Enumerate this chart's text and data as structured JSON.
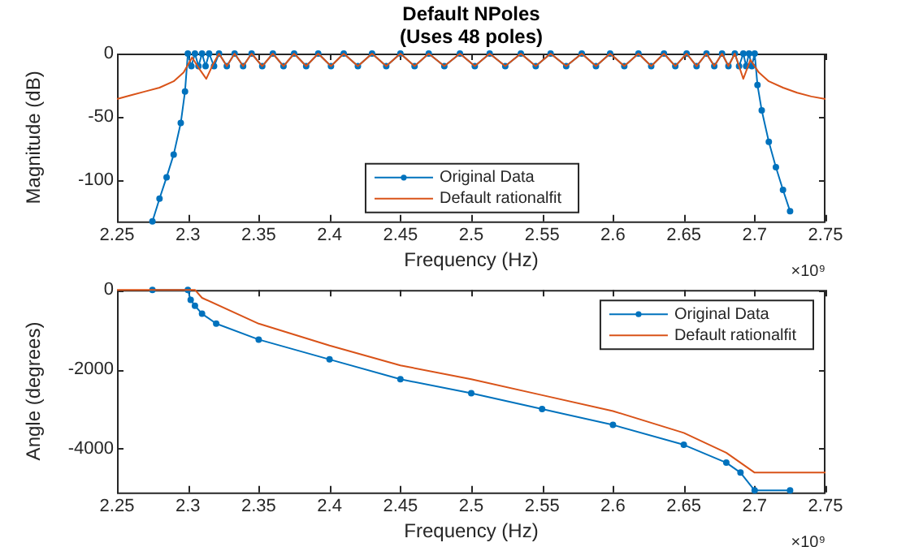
{
  "chart_data": [
    {
      "type": "line",
      "title": "Default NPoles (Uses 48 poles)",
      "xlabel": "Frequency (Hz)",
      "ylabel": "Magnitude (dB)",
      "annotations": [
        "×10⁹"
      ],
      "xlim": [
        2.25,
        2.75
      ],
      "xticks": [
        2.25,
        2.3,
        2.35,
        2.4,
        2.45,
        2.5,
        2.55,
        2.6,
        2.65,
        2.7,
        2.75
      ],
      "ylim": [
        -133,
        0
      ],
      "yticks": [
        -100,
        -50,
        0
      ],
      "grid": false,
      "legend": "bottom",
      "series": [
        {
          "name": "Original Data",
          "color": "#0072bd",
          "marker": "circle",
          "x": [
            2.275,
            2.28,
            2.285,
            2.29,
            2.295,
            2.298,
            2.3,
            2.3025,
            2.305,
            2.3075,
            2.31,
            2.3125,
            2.315,
            2.3185,
            2.322,
            2.3275,
            2.333,
            2.339,
            2.345,
            2.3525,
            2.36,
            2.3675,
            2.375,
            2.3835,
            2.392,
            2.401,
            2.41,
            2.42,
            2.43,
            2.44,
            2.45,
            2.46,
            2.47,
            2.481,
            2.492,
            2.5025,
            2.513,
            2.524,
            2.535,
            2.5455,
            2.556,
            2.567,
            2.578,
            2.588,
            2.598,
            2.608,
            2.618,
            2.627,
            2.636,
            2.644,
            2.652,
            2.659,
            2.666,
            2.6715,
            2.677,
            2.6815,
            2.686,
            2.689,
            2.692,
            2.694,
            2.696,
            2.698,
            2.7,
            2.702,
            2.705,
            2.71,
            2.715,
            2.72,
            2.725
          ],
          "values": [
            -133,
            -115,
            -98,
            -80,
            -55,
            -30,
            0,
            -10,
            0,
            -10,
            0,
            -10,
            0,
            -10,
            0,
            -10,
            0,
            -10,
            0,
            -10,
            0,
            -10,
            0,
            -10,
            0,
            -10,
            0,
            -10,
            0,
            -10,
            0,
            -10,
            0,
            -10,
            0,
            -10,
            0,
            -10,
            0,
            -10,
            0,
            -10,
            0,
            -10,
            0,
            -10,
            0,
            -10,
            0,
            -10,
            0,
            -10,
            0,
            -10,
            0,
            -10,
            0,
            -10,
            0,
            -10,
            0,
            -10,
            0,
            -25,
            -45,
            -70,
            -90,
            -108,
            -125
          ]
        },
        {
          "name": "Default rationalfit",
          "color": "#d95319",
          "marker": "none",
          "x": [
            2.25,
            2.26,
            2.27,
            2.28,
            2.29,
            2.297,
            2.303,
            2.308,
            2.313,
            2.318,
            2.322,
            2.3275,
            2.333,
            2.339,
            2.345,
            2.3525,
            2.36,
            2.3675,
            2.375,
            2.3835,
            2.392,
            2.401,
            2.41,
            2.42,
            2.43,
            2.44,
            2.45,
            2.46,
            2.47,
            2.481,
            2.492,
            2.5025,
            2.513,
            2.524,
            2.535,
            2.5455,
            2.556,
            2.567,
            2.578,
            2.588,
            2.598,
            2.608,
            2.618,
            2.627,
            2.636,
            2.644,
            2.652,
            2.659,
            2.666,
            2.6715,
            2.677,
            2.6815,
            2.686,
            2.692,
            2.697,
            2.703,
            2.71,
            2.72,
            2.73,
            2.74,
            2.75
          ],
          "values": [
            -36,
            -33,
            -30,
            -27,
            -22,
            -15,
            -3,
            -12,
            -20,
            -8,
            0,
            -10,
            0,
            -10,
            0,
            -10,
            0,
            -10,
            0,
            -10,
            0,
            -10,
            0,
            -10,
            0,
            -10,
            0,
            -10,
            0,
            -10,
            0,
            -10,
            0,
            -10,
            0,
            -10,
            0,
            -10,
            0,
            -10,
            0,
            -10,
            0,
            -10,
            0,
            -10,
            0,
            -10,
            0,
            -10,
            0,
            -10,
            0,
            -20,
            -5,
            -15,
            -22,
            -27,
            -31,
            -34,
            -36
          ]
        }
      ]
    },
    {
      "type": "line",
      "xlabel": "Frequency (Hz)",
      "ylabel": "Angle (degrees)",
      "annotations": [
        "×10⁹"
      ],
      "xlim": [
        2.25,
        2.75
      ],
      "xticks": [
        2.25,
        2.3,
        2.35,
        2.4,
        2.45,
        2.5,
        2.55,
        2.6,
        2.65,
        2.7,
        2.75
      ],
      "ylim": [
        -5100,
        0
      ],
      "yticks": [
        -4000,
        -2000,
        0
      ],
      "grid": false,
      "legend": "top right",
      "series": [
        {
          "name": "Original Data",
          "color": "#0072bd",
          "marker": "circle",
          "x": [
            2.275,
            2.3,
            2.302,
            2.305,
            2.31,
            2.32,
            2.35,
            2.4,
            2.45,
            2.5,
            2.55,
            2.6,
            2.65,
            2.68,
            2.69,
            2.7,
            2.725
          ],
          "values": [
            0,
            0,
            -250,
            -400,
            -600,
            -850,
            -1250,
            -1750,
            -2250,
            -2600,
            -3000,
            -3400,
            -3900,
            -4350,
            -4600,
            -5050,
            -5050
          ]
        },
        {
          "name": "Default rationalfit",
          "color": "#d95319",
          "marker": "none",
          "x": [
            2.25,
            2.305,
            2.31,
            2.35,
            2.4,
            2.45,
            2.5,
            2.55,
            2.6,
            2.65,
            2.68,
            2.7,
            2.75
          ],
          "values": [
            0,
            0,
            -200,
            -850,
            -1400,
            -1900,
            -2250,
            -2650,
            -3050,
            -3600,
            -4100,
            -4600,
            -4600
          ]
        }
      ]
    }
  ]
}
